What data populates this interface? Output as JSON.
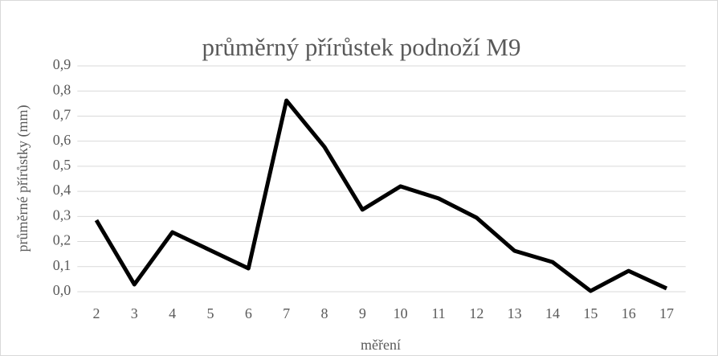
{
  "chart_data": {
    "type": "line",
    "title": "průměrný přírůstek podnoží M9",
    "x_label": "měření",
    "y_label": "průměrné přírůstky (mm)",
    "categories": [
      "2",
      "3",
      "4",
      "5",
      "6",
      "7",
      "8",
      "9",
      "10",
      "11",
      "12",
      "13",
      "14",
      "15",
      "16",
      "17"
    ],
    "values": [
      0.285,
      0.029,
      0.237,
      0.165,
      0.093,
      0.762,
      0.577,
      0.327,
      0.42,
      0.372,
      0.295,
      0.163,
      0.118,
      0.003,
      0.083,
      0.013
    ],
    "color": "#000000",
    "ylim": [
      0,
      0.9
    ],
    "yticks": [
      {
        "value": 0,
        "label": "0,0"
      },
      {
        "value": 0.1,
        "label": "0,1"
      },
      {
        "value": 0.2,
        "label": "0,2"
      },
      {
        "value": 0.3,
        "label": "0,3"
      },
      {
        "value": 0.4,
        "label": "0,4"
      },
      {
        "value": 0.5,
        "label": "0,5"
      },
      {
        "value": 0.6,
        "label": "0,6"
      },
      {
        "value": 0.7,
        "label": "0,7"
      },
      {
        "value": 0.8,
        "label": "0,8"
      },
      {
        "value": 0.9,
        "label": "0,9"
      }
    ],
    "grid": true
  }
}
